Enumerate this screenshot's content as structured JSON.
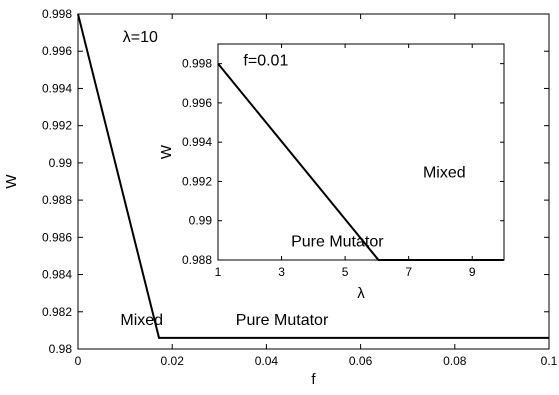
{
  "chart_data": [
    {
      "type": "line",
      "title": "",
      "xlabel": "f",
      "ylabel": "W",
      "xlim": [
        0,
        0.1
      ],
      "ylim": [
        0.98,
        0.998
      ],
      "xticks": [
        0,
        0.02,
        0.04,
        0.06,
        0.08,
        0.1
      ],
      "xtick_labels": [
        "0",
        "0.02",
        "0.04",
        "0.06",
        "0.08",
        "0.1"
      ],
      "yticks": [
        0.98,
        0.982,
        0.984,
        0.986,
        0.988,
        0.99,
        0.992,
        0.994,
        0.996,
        0.998
      ],
      "ytick_labels": [
        "0.98",
        "0.982",
        "0.984",
        "0.986",
        "0.988",
        "0.99",
        "0.992",
        "0.994",
        "0.996",
        "0.998"
      ],
      "grid": false,
      "series": [
        {
          "x": [
            0,
            0.0172,
            0.1
          ],
          "y": [
            0.998,
            0.9806,
            0.9806
          ]
        }
      ],
      "annotations": [
        {
          "text": "λ=10",
          "x": 0.0095,
          "y": 0.9965
        },
        {
          "text": "Mixed",
          "x": 0.009,
          "y": 0.9813
        },
        {
          "text": "Pure Mutator",
          "x": 0.0335,
          "y": 0.9813
        }
      ]
    },
    {
      "type": "line",
      "title": "",
      "xlabel": "λ",
      "ylabel": "W",
      "xlim": [
        1,
        10
      ],
      "ylim": [
        0.988,
        0.999
      ],
      "xticks": [
        1,
        3,
        5,
        7,
        9
      ],
      "xtick_labels": [
        "1",
        "3",
        "5",
        "7",
        "9"
      ],
      "yticks": [
        0.988,
        0.99,
        0.992,
        0.994,
        0.996,
        0.998
      ],
      "ytick_labels": [
        "0.988",
        "0.99",
        "0.992",
        "0.994",
        "0.996",
        "0.998"
      ],
      "grid": false,
      "series": [
        {
          "x": [
            1,
            6.05,
            10
          ],
          "y": [
            0.998,
            0.988,
            0.988
          ]
        }
      ],
      "annotations": [
        {
          "text": "f=0.01",
          "x": 1.8,
          "y": 0.9979
        },
        {
          "text": "Mixed",
          "x": 7.45,
          "y": 0.9922
        },
        {
          "text": "Pure Mutator",
          "x": 3.3,
          "y": 0.9887
        }
      ]
    }
  ]
}
